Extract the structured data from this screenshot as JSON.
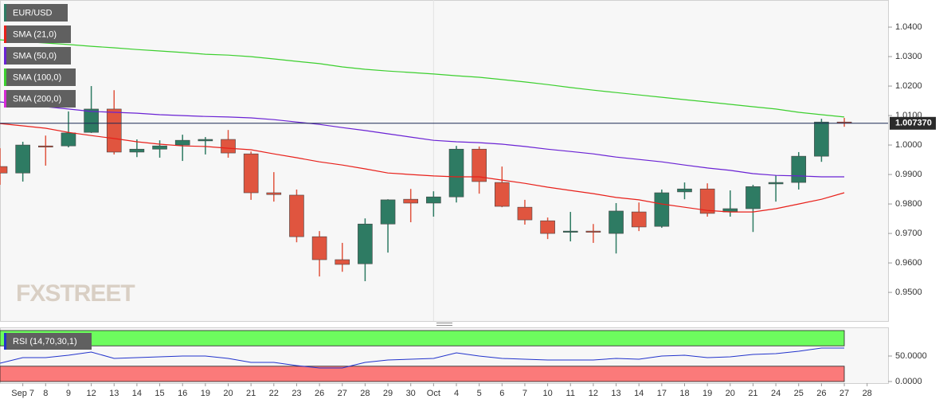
{
  "watermark": "FXSTREET",
  "chart_data": [
    {
      "type": "candlestick",
      "title": "EUR/USD",
      "categories": [
        null,
        "Sep 7",
        "8",
        "9",
        "12",
        "13",
        "14",
        "15",
        "16",
        "19",
        "20",
        "21",
        "22",
        "23",
        "26",
        "27",
        "28",
        "29",
        "30",
        "Oct",
        "4",
        "5",
        "6",
        "7",
        "10",
        "11",
        "12",
        "13",
        "14",
        "17",
        "18",
        "19",
        "20",
        "21",
        "24",
        "25",
        "26",
        "27",
        "28"
      ],
      "open": [
        0.9927,
        0.9905,
        0.9997,
        0.9997,
        1.0043,
        1.0122,
        0.9976,
        0.9986,
        1.0,
        1.0014,
        1.0019,
        0.997,
        0.9838,
        0.983,
        0.9689,
        0.9611,
        0.9597,
        0.9732,
        0.9816,
        0.9803,
        0.9824,
        0.9986,
        0.9873,
        0.9789,
        0.9743,
        0.9705,
        0.9708,
        0.97,
        0.9773,
        0.9724,
        0.9841,
        0.9851,
        0.9773,
        0.9784,
        0.9868,
        0.9873,
        0.9962,
        1.0078,
        null
      ],
      "high": [
        0.9989,
        1.0011,
        1.0032,
        1.0114,
        1.02,
        1.0186,
        1.0019,
        1.0016,
        1.0035,
        1.0027,
        1.0051,
        0.9978,
        0.9908,
        0.9849,
        0.9708,
        0.9668,
        0.9751,
        0.9816,
        0.9851,
        0.9843,
        0.9997,
        0.9995,
        0.9927,
        0.9814,
        0.9754,
        0.9773,
        0.9732,
        0.9803,
        0.9805,
        0.9849,
        0.9873,
        0.987,
        0.9846,
        0.9865,
        0.9897,
        0.9976,
        1.0089,
        1.0092,
        null
      ],
      "low": [
        0.9865,
        0.9876,
        0.993,
        0.9992,
        1.0041,
        0.9968,
        0.9959,
        0.9957,
        0.9946,
        0.9968,
        0.9957,
        0.9814,
        0.9808,
        0.967,
        0.9554,
        0.957,
        0.9538,
        0.9635,
        0.9738,
        0.9757,
        0.9805,
        0.9835,
        0.9789,
        0.973,
        0.9681,
        0.9673,
        0.9668,
        0.9632,
        0.9708,
        0.9719,
        0.9816,
        0.9757,
        0.9757,
        0.9705,
        0.9808,
        0.9849,
        0.9943,
        1.0062,
        null
      ],
      "close": [
        0.9905,
        1.0,
        0.9995,
        1.0041,
        1.0122,
        0.9976,
        0.9986,
        0.9997,
        1.0016,
        1.0019,
        0.9973,
        0.9838,
        0.9832,
        0.9689,
        0.9611,
        0.9595,
        0.9732,
        0.9814,
        0.9803,
        0.9824,
        0.9986,
        0.9876,
        0.9792,
        0.9746,
        0.97,
        0.9708,
        0.9705,
        0.9776,
        0.9722,
        0.9838,
        0.9851,
        0.9768,
        0.9784,
        0.9859,
        0.9873,
        0.9962,
        1.0078,
        1.0074,
        null
      ],
      "up_color": "#2e7b63",
      "down_color": "#e0553f",
      "color": "#2e7b63",
      "series": [
        {
          "name": "SMA (21,0)",
          "color": "#e8201a",
          "values": [
            1.0073,
            1.0065,
            1.0057,
            1.0043,
            1.0032,
            1.0022,
            1.0011,
            1.0003,
            0.9997,
            0.9995,
            0.9989,
            0.9984,
            0.997,
            0.9957,
            0.9943,
            0.9932,
            0.9919,
            0.9905,
            0.99,
            0.9895,
            0.9892,
            0.9892,
            0.9881,
            0.987,
            0.9857,
            0.9846,
            0.9835,
            0.9822,
            0.9814,
            0.98,
            0.9789,
            0.9778,
            0.9773,
            0.9773,
            0.9784,
            0.98,
            0.9816,
            0.9838,
            null
          ]
        },
        {
          "name": "SMA (50,0)",
          "color": "#6a22d4",
          "values": [
            1.0146,
            1.0138,
            1.013,
            1.0122,
            1.0114,
            1.0111,
            1.0108,
            1.0103,
            1.01,
            1.0097,
            1.0095,
            1.0092,
            1.0086,
            1.0078,
            1.007,
            1.0059,
            1.0049,
            1.0038,
            1.0027,
            1.0016,
            1.0011,
            1.0008,
            1.0003,
            0.9995,
            0.9986,
            0.9978,
            0.997,
            0.9959,
            0.9951,
            0.9943,
            0.9932,
            0.9922,
            0.9914,
            0.9903,
            0.9897,
            0.9895,
            0.9892,
            0.9892,
            null
          ]
        },
        {
          "name": "SMA (100,0)",
          "color": "#3ccf2e",
          "values": [
            1.0357,
            1.0351,
            1.0346,
            1.0341,
            1.0335,
            1.033,
            1.0324,
            1.0319,
            1.0314,
            1.0308,
            1.0305,
            1.03,
            1.0292,
            1.0284,
            1.0276,
            1.0265,
            1.0257,
            1.0251,
            1.0246,
            1.0241,
            1.0235,
            1.023,
            1.0222,
            1.0214,
            1.0205,
            1.0195,
            1.0186,
            1.0178,
            1.017,
            1.0162,
            1.0154,
            1.0146,
            1.0138,
            1.013,
            1.0122,
            1.0111,
            1.0103,
            1.0095,
            null
          ]
        },
        {
          "name": "SMA (200,0)",
          "color": "#d62ad6"
        }
      ],
      "ylim": [
        0.9403,
        1.0492
      ],
      "yticks": [
        {
          "value": 0.95,
          "label": "0.9500"
        },
        {
          "value": 0.96,
          "label": "0.9600"
        },
        {
          "value": 0.97,
          "label": "0.9700"
        },
        {
          "value": 0.98,
          "label": "0.9800"
        },
        {
          "value": 0.99,
          "label": "0.9900"
        },
        {
          "value": 1.0,
          "label": "1.0000"
        },
        {
          "value": 1.01,
          "label": "1.0100"
        },
        {
          "value": 1.02,
          "label": "1.0200"
        },
        {
          "value": 1.03,
          "label": "1.0300"
        },
        {
          "value": 1.04,
          "label": "1.0400"
        }
      ],
      "last_price": {
        "value": 1.00737,
        "label": "1.007370"
      }
    },
    {
      "type": "line",
      "series": [
        {
          "name": "RSI (14,70,30,1)",
          "color": "#2233cc",
          "values": [
            35.9,
            46.9,
            46.9,
            51.6,
            57.8,
            45.3,
            46.9,
            48.4,
            50.0,
            50.0,
            45.3,
            37.5,
            37.5,
            31.3,
            26.6,
            26.6,
            37.5,
            42.2,
            43.8,
            45.3,
            56.3,
            50.0,
            45.3,
            43.8,
            42.2,
            42.2,
            42.2,
            45.3,
            43.8,
            50.0,
            51.6,
            46.9,
            48.4,
            53.1,
            54.7,
            59.4,
            65.6,
            65.6,
            null
          ]
        }
      ],
      "bands": [
        {
          "from": 70,
          "to": 100,
          "color": "#6dfc5e"
        },
        {
          "from": 0,
          "to": 30,
          "color": "#fb7a7a"
        }
      ],
      "ylim": [
        0,
        100
      ],
      "yticks": [
        {
          "value": 0,
          "label": "0.0000"
        },
        {
          "value": 50,
          "label": "50.0000"
        }
      ]
    }
  ]
}
